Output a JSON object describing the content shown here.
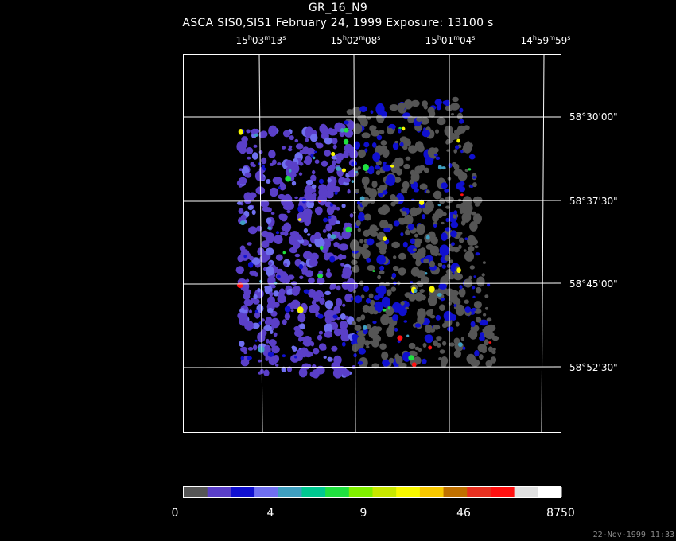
{
  "header": {
    "title": "GR_16_N9",
    "subtitle": "ASCA SIS0,SIS1 February 24, 1999 Exposure: 13100 s"
  },
  "ra_labels": [
    {
      "h": "15",
      "m": "03",
      "s": "13"
    },
    {
      "h": "15",
      "m": "02",
      "s": "08"
    },
    {
      "h": "15",
      "m": "01",
      "s": "04"
    },
    {
      "h": "14",
      "m": "59",
      "s": "59"
    }
  ],
  "dec_labels": [
    "58°30'00\"",
    "58°37'30\"",
    "58°45'00\"",
    "58°52'30\""
  ],
  "colorbar": {
    "colors": [
      "#555555",
      "#5a3fc8",
      "#1010d0",
      "#6f6ff0",
      "#3f9fc0",
      "#00c890",
      "#20e040",
      "#80f000",
      "#c8e800",
      "#f8f800",
      "#f8c800",
      "#c07000",
      "#e83020",
      "#ff1010",
      "#e0e0e0",
      "#ffffff"
    ],
    "labels": [
      "0",
      "4",
      "9",
      "46",
      "8750"
    ]
  },
  "timestamp": "22-Nov-1999 11:33"
}
